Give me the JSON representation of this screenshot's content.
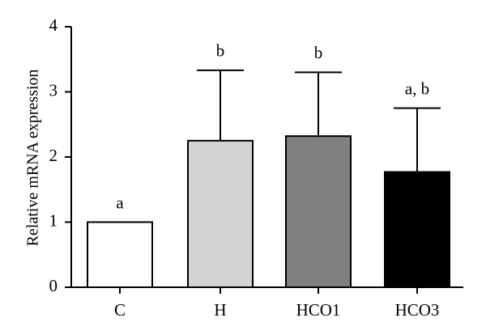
{
  "chart_data": {
    "type": "bar",
    "title": "",
    "xlabel": "",
    "ylabel": "Relative mRNA expression",
    "ylim": [
      0,
      4
    ],
    "yticks": [
      "0",
      "1",
      "2",
      "3",
      "4"
    ],
    "categories": [
      "C",
      "H",
      "HCO1",
      "HCO3"
    ],
    "values": [
      1.0,
      2.25,
      2.32,
      1.77
    ],
    "errors": [
      0.0,
      1.08,
      0.98,
      0.98
    ],
    "significance": [
      "a",
      "b",
      "b",
      "a, b"
    ],
    "colors": [
      "#ffffff",
      "#d3d3d3",
      "#808080",
      "#000000"
    ],
    "grid": false
  }
}
